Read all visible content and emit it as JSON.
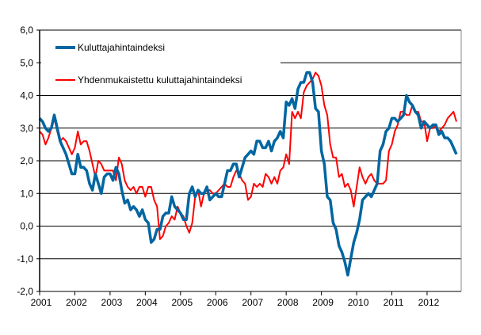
{
  "chart_data": {
    "type": "line",
    "title": "",
    "xlabel": "",
    "ylabel": "",
    "ylim": [
      -2.0,
      6.0
    ],
    "grid": true,
    "legend_placement": "top-left",
    "y_ticks": [
      "-2,0",
      "-1,0",
      "0,0",
      "1,0",
      "2,0",
      "3,0",
      "4,0",
      "5,0",
      "6,0"
    ],
    "x_ticks": [
      "2001",
      "2002",
      "2003",
      "2004",
      "2005",
      "2006",
      "2007",
      "2008",
      "2009",
      "2010",
      "2011",
      "2012"
    ],
    "x_start": "2001-01",
    "frequency": "monthly",
    "series": [
      {
        "name": "Kuluttajahintaindeksi",
        "color": "#0066A1",
        "values": [
          3.3,
          3.2,
          3.0,
          2.9,
          3.0,
          3.4,
          3.0,
          2.6,
          2.4,
          2.2,
          1.9,
          1.6,
          1.6,
          2.2,
          1.8,
          1.8,
          1.7,
          1.3,
          1.1,
          1.6,
          1.3,
          1.0,
          1.5,
          1.6,
          1.6,
          1.4,
          1.8,
          1.6,
          1.1,
          0.7,
          0.8,
          0.5,
          0.6,
          0.5,
          0.3,
          0.5,
          0.2,
          0.1,
          -0.5,
          -0.4,
          -0.1,
          -0.1,
          0.3,
          0.4,
          0.4,
          0.9,
          0.6,
          0.5,
          0.4,
          0.2,
          0.2,
          1.0,
          1.2,
          0.9,
          1.1,
          1.0,
          1.0,
          1.2,
          0.8,
          0.9,
          1.0,
          0.9,
          0.9,
          1.3,
          1.7,
          1.7,
          1.9,
          1.9,
          1.5,
          1.8,
          2.1,
          2.2,
          2.3,
          2.2,
          2.6,
          2.6,
          2.4,
          2.4,
          2.6,
          2.3,
          2.6,
          2.7,
          2.9,
          2.7,
          3.8,
          3.7,
          3.9,
          3.6,
          4.2,
          4.4,
          4.4,
          4.7,
          4.7,
          4.4,
          3.6,
          3.5,
          2.3,
          1.9,
          0.9,
          0.8,
          0.1,
          -0.1,
          -0.6,
          -0.8,
          -1.1,
          -1.5,
          -1.0,
          -0.5,
          -0.2,
          0.2,
          0.8,
          0.9,
          1.0,
          0.9,
          1.1,
          1.3,
          2.3,
          2.5,
          2.9,
          3.0,
          3.3,
          3.3,
          3.2,
          3.3,
          3.4,
          4.0,
          3.8,
          3.7,
          3.5,
          3.4,
          3.0,
          3.2,
          3.1,
          3.0,
          3.1,
          3.1,
          2.8,
          2.9,
          2.7,
          2.7,
          2.6,
          2.4,
          2.2
        ]
      },
      {
        "name": "Yhdenmukaistettu kuluttajahintaindeksi",
        "color": "#FF0000",
        "values": [
          2.9,
          2.8,
          2.5,
          2.7,
          3.0,
          3.3,
          2.9,
          2.6,
          2.7,
          2.6,
          2.4,
          2.2,
          2.4,
          2.9,
          2.5,
          2.6,
          2.6,
          2.3,
          1.9,
          1.5,
          2.0,
          1.9,
          1.7,
          1.7,
          1.7,
          1.7,
          1.4,
          2.1,
          1.9,
          1.4,
          1.2,
          1.1,
          1.2,
          1.0,
          1.2,
          1.2,
          0.9,
          1.2,
          1.2,
          0.8,
          0.6,
          -0.4,
          -0.3,
          0.0,
          0.1,
          0.3,
          0.2,
          0.6,
          0.4,
          0.3,
          0.0,
          -0.2,
          0.1,
          0.9,
          1.1,
          0.6,
          1.0,
          1.1,
          1.1,
          1.0,
          1.0,
          1.1,
          1.2,
          1.3,
          1.2,
          1.2,
          1.5,
          1.7,
          1.6,
          1.4,
          1.3,
          0.8,
          0.9,
          1.3,
          1.2,
          1.3,
          1.2,
          1.6,
          1.5,
          1.3,
          1.5,
          1.3,
          1.7,
          1.8,
          2.2,
          1.9,
          3.5,
          3.3,
          3.5,
          3.3,
          4.1,
          4.3,
          4.4,
          4.5,
          4.7,
          4.6,
          4.3,
          3.7,
          3.4,
          2.5,
          2.1,
          2.1,
          1.5,
          1.6,
          1.2,
          1.3,
          1.1,
          0.6,
          1.2,
          1.8,
          1.5,
          1.3,
          1.5,
          1.6,
          1.4,
          1.3,
          1.3,
          1.3,
          1.4,
          2.3,
          2.5,
          2.9,
          3.1,
          3.5,
          3.5,
          3.4,
          3.4,
          3.7,
          3.5,
          3.5,
          3.2,
          3.2,
          2.6,
          3.0,
          3.0,
          3.1,
          2.9,
          3.0,
          3.1,
          3.3,
          3.4,
          3.5,
          3.2
        ]
      }
    ]
  }
}
